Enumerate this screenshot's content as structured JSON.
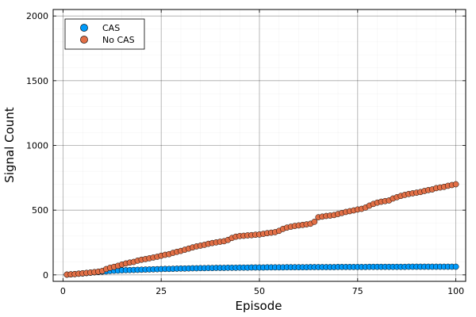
{
  "chart_data": {
    "type": "scatter",
    "title": "",
    "xlabel": "Episode",
    "ylabel": "Signal Count",
    "xlim": [
      -2.5,
      102.5
    ],
    "ylim": [
      -50,
      2050
    ],
    "xticks": [
      0,
      25,
      50,
      75,
      100
    ],
    "yticks": [
      0,
      500,
      1000,
      1500,
      2000
    ],
    "grid": true,
    "minor_grid": true,
    "legend_position": "top-left",
    "x": [
      1,
      2,
      3,
      4,
      5,
      6,
      7,
      8,
      9,
      10,
      11,
      12,
      13,
      14,
      15,
      16,
      17,
      18,
      19,
      20,
      21,
      22,
      23,
      24,
      25,
      26,
      27,
      28,
      29,
      30,
      31,
      32,
      33,
      34,
      35,
      36,
      37,
      38,
      39,
      40,
      41,
      42,
      43,
      44,
      45,
      46,
      47,
      48,
      49,
      50,
      51,
      52,
      53,
      54,
      55,
      56,
      57,
      58,
      59,
      60,
      61,
      62,
      63,
      64,
      65,
      66,
      67,
      68,
      69,
      70,
      71,
      72,
      73,
      74,
      75,
      76,
      77,
      78,
      79,
      80,
      81,
      82,
      83,
      84,
      85,
      86,
      87,
      88,
      89,
      90,
      91,
      92,
      93,
      94,
      95,
      96,
      97,
      98,
      99,
      100
    ],
    "series": [
      {
        "name": "CAS",
        "color": "#009AFA",
        "values": [
          2,
          4,
          6,
          9,
          11,
          14,
          17,
          20,
          22,
          25,
          27,
          30,
          32,
          33,
          35,
          36,
          37,
          38,
          39,
          40,
          41,
          42,
          43,
          44,
          45,
          46,
          46,
          47,
          48,
          49,
          49,
          50,
          51,
          51,
          52,
          52,
          53,
          53,
          54,
          54,
          54,
          55,
          55,
          55,
          56,
          56,
          56,
          57,
          57,
          57,
          57,
          58,
          58,
          58,
          58,
          58,
          59,
          59,
          59,
          59,
          59,
          59,
          60,
          60,
          60,
          60,
          60,
          60,
          60,
          61,
          61,
          61,
          61,
          61,
          61,
          61,
          61,
          62,
          62,
          62,
          62,
          62,
          62,
          62,
          62,
          62,
          62,
          63,
          63,
          63,
          63,
          63,
          63,
          63,
          63,
          63,
          63,
          63,
          63,
          63
        ]
      },
      {
        "name": "No CAS",
        "color": "#E26F46",
        "values": [
          2,
          4,
          6,
          9,
          12,
          15,
          18,
          21,
          25,
          30,
          45,
          55,
          62,
          70,
          80,
          88,
          95,
          100,
          110,
          117,
          122,
          128,
          134,
          140,
          148,
          155,
          160,
          170,
          178,
          185,
          194,
          203,
          212,
          220,
          226,
          232,
          240,
          246,
          251,
          256,
          260,
          270,
          285,
          295,
          300,
          302,
          305,
          307,
          310,
          312,
          317,
          322,
          326,
          330,
          340,
          355,
          365,
          372,
          378,
          382,
          386,
          390,
          395,
          410,
          445,
          450,
          455,
          458,
          462,
          470,
          478,
          486,
          492,
          498,
          505,
          510,
          520,
          535,
          548,
          558,
          565,
          570,
          575,
          590,
          600,
          610,
          618,
          625,
          630,
          635,
          640,
          648,
          655,
          660,
          670,
          675,
          680,
          688,
          694,
          700
        ]
      }
    ]
  }
}
